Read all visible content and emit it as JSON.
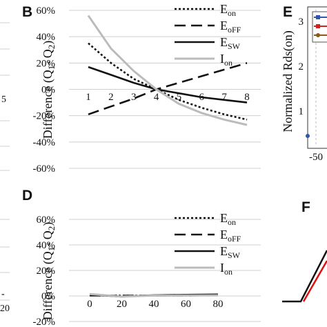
{
  "panels": {
    "B": {
      "label": "B"
    },
    "D": {
      "label": "D"
    },
    "E": {
      "label": "E"
    },
    "F": {
      "label": "F"
    }
  },
  "chart_data": [
    {
      "panel": "B",
      "type": "line",
      "title": "",
      "xlabel": "",
      "ylabel": "Difference (Q1- Q2)",
      "ylabel_main": "Difference (Q",
      "ylabel_sub1": "1",
      "ylabel_mid": "- Q",
      "ylabel_sub2": "2",
      "ylabel_end": ")",
      "x_ticks": [
        "1",
        "2",
        "3",
        "4",
        "5",
        "6",
        "7",
        "8"
      ],
      "y_ticks": [
        "60%",
        "40%",
        "20%",
        "0%",
        "-20%",
        "-40%",
        "-60%"
      ],
      "ylim": [
        -60,
        60
      ],
      "xlim": [
        1,
        8
      ],
      "grid": "horizontal",
      "legend_position": "top-right",
      "series": [
        {
          "name": "Eon",
          "name_main": "E",
          "name_sub": "on",
          "style": "dotted",
          "color": "#111111",
          "x": [
            1,
            2,
            3,
            4,
            5,
            6,
            7,
            8
          ],
          "values": [
            35,
            20,
            8,
            0,
            -8,
            -14,
            -19,
            -23
          ]
        },
        {
          "name": "EoFF",
          "name_main": "E",
          "name_sub": "oFF",
          "style": "dashed",
          "color": "#111111",
          "x": [
            1,
            2,
            3,
            4,
            5,
            6,
            7,
            8
          ],
          "values": [
            -19,
            -13,
            -7,
            0,
            5,
            10,
            15,
            20
          ]
        },
        {
          "name": "ESW",
          "name_main": "E",
          "name_sub": "SW",
          "style": "solid",
          "color": "#111111",
          "x": [
            1,
            2,
            3,
            4,
            5,
            6,
            7,
            8
          ],
          "values": [
            17,
            11,
            5,
            0,
            -3,
            -6,
            -8,
            -10
          ]
        },
        {
          "name": "Ion",
          "name_main": "I",
          "name_sub": "on",
          "style": "solid",
          "color": "#bbbbbb",
          "x": [
            1,
            2,
            3,
            4,
            5,
            6,
            7,
            8
          ],
          "values": [
            56,
            31,
            14,
            0,
            -11,
            -18,
            -23,
            -27
          ]
        }
      ]
    },
    {
      "panel": "D",
      "type": "line",
      "title": "",
      "xlabel": "",
      "ylabel": "Difference (Q1- Q2)",
      "ylabel_main": "Difference (Q",
      "ylabel_sub1": "1",
      "ylabel_mid": "- Q",
      "ylabel_sub2": "2",
      "ylabel_end": ")",
      "x_ticks": [
        "0",
        "20",
        "40",
        "60",
        "80"
      ],
      "y_ticks": [
        "60%",
        "40%",
        "20%",
        "0%",
        "-20%"
      ],
      "ylim": [
        -20,
        60
      ],
      "xlim": [
        0,
        80
      ],
      "grid": "horizontal",
      "legend_position": "top-right",
      "series": [
        {
          "name": "Eon",
          "name_main": "E",
          "name_sub": "on",
          "style": "dotted",
          "color": "#111111",
          "x": [
            0,
            20,
            40,
            60,
            80
          ],
          "values": [
            0.5,
            0.2,
            0.3,
            0.4,
            0.5
          ]
        },
        {
          "name": "EoFF",
          "name_main": "E",
          "name_sub": "oFF",
          "style": "dashed",
          "color": "#111111",
          "x": [
            0,
            20,
            40,
            60,
            80
          ],
          "values": [
            0.4,
            0.2,
            0.3,
            0.4,
            0.5
          ]
        },
        {
          "name": "ESW",
          "name_main": "E",
          "name_sub": "SW",
          "style": "solid",
          "color": "#111111",
          "x": [
            0,
            20,
            40,
            60,
            80
          ],
          "values": [
            1.0,
            -0.5,
            0.6,
            0.9,
            1.2
          ]
        },
        {
          "name": "Ion",
          "name_main": "I",
          "name_sub": "on",
          "style": "solid",
          "color": "#bbbbbb",
          "x": [
            0,
            20,
            40,
            60,
            80
          ],
          "values": [
            1.5,
            -0.5,
            0.3,
            0.4,
            0.5
          ]
        }
      ]
    },
    {
      "panel": "E",
      "type": "scatter",
      "title": "",
      "ylabel": "Normalized Rds(on)",
      "y_ticks": [
        "3",
        "2",
        "1"
      ],
      "x_ticks": [
        "-50"
      ],
      "legend_position": "top-right",
      "legend_colors": [
        "#3355aa",
        "#cc2222",
        "#8a5a1a"
      ],
      "points": [
        {
          "x": -50,
          "y": 0.55,
          "color": "#3355aa"
        }
      ]
    },
    {
      "panel": "F",
      "type": "line",
      "title": "",
      "series": [
        {
          "name": "",
          "color": "#111111"
        },
        {
          "name": "",
          "color": "#dd1111"
        }
      ]
    }
  ],
  "fragments": {
    "left_top_tick": "5",
    "left_bottom_tick": "20",
    "left_bottom_mark": "-"
  }
}
